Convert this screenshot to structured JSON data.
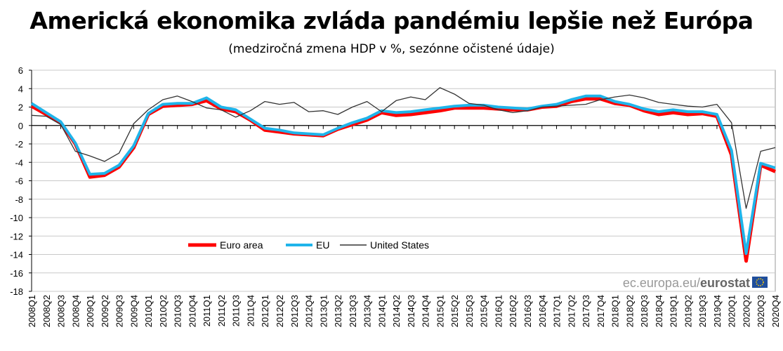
{
  "chart_data": {
    "type": "line",
    "title": "Americká ekonomika zvláda pandémiu lepšie než Európa",
    "subtitle": "(medziročná zmena HDP v %, sezónne očistené údaje)",
    "xlabel": "",
    "ylabel": "",
    "ylim": [
      -18,
      6
    ],
    "yticks": [
      "6",
      "4",
      "2",
      "0",
      "-2",
      "-4",
      "-6",
      "-8",
      "-10",
      "-12",
      "-14",
      "-16",
      "-18"
    ],
    "grid": true,
    "legend_position": "bottom-left",
    "categories": [
      "2008Q1",
      "2008Q2",
      "2008Q3",
      "2008Q4",
      "2009Q1",
      "2009Q2",
      "2009Q3",
      "2009Q4",
      "2010Q1",
      "2010Q2",
      "2010Q3",
      "2010Q4",
      "2011Q1",
      "2011Q2",
      "2011Q3",
      "2011Q4",
      "2012Q1",
      "2012Q2",
      "2012Q3",
      "2012Q4",
      "2013Q1",
      "2013Q2",
      "2013Q3",
      "2013Q4",
      "2014Q1",
      "2014Q2",
      "2014Q3",
      "2014Q4",
      "2015Q1",
      "2015Q2",
      "2015Q3",
      "2015Q4",
      "2016Q1",
      "2016Q2",
      "2016Q3",
      "2016Q4",
      "2017Q1",
      "2017Q2",
      "2017Q3",
      "2017Q4",
      "2018Q1",
      "2018Q2",
      "2018Q3",
      "2018Q4",
      "2019Q1",
      "2019Q2",
      "2019Q3",
      "2019Q4",
      "2020Q1",
      "2020Q2",
      "2020Q3",
      "2020Q4"
    ],
    "series": [
      {
        "name": "Euro area",
        "color": "#ff0000",
        "values": [
          2.1,
          1.2,
          0.3,
          -2.0,
          -5.6,
          -5.4,
          -4.5,
          -2.4,
          1.2,
          2.1,
          2.2,
          2.3,
          2.7,
          1.8,
          1.5,
          0.6,
          -0.5,
          -0.7,
          -0.9,
          -1.0,
          -1.1,
          -0.4,
          0.1,
          0.6,
          1.4,
          1.1,
          1.2,
          1.4,
          1.6,
          1.9,
          1.9,
          1.9,
          1.8,
          1.7,
          1.7,
          2.0,
          2.1,
          2.6,
          2.9,
          2.9,
          2.4,
          2.2,
          1.6,
          1.2,
          1.4,
          1.2,
          1.3,
          1.0,
          -3.2,
          -14.7,
          -4.3,
          -5.0
        ]
      },
      {
        "name": "EU",
        "color": "#1fb4ea",
        "values": [
          2.4,
          1.4,
          0.4,
          -1.9,
          -5.3,
          -5.2,
          -4.3,
          -2.2,
          1.3,
          2.3,
          2.4,
          2.4,
          3.0,
          2.0,
          1.7,
          0.7,
          -0.3,
          -0.5,
          -0.8,
          -0.9,
          -1.0,
          -0.3,
          0.3,
          0.8,
          1.6,
          1.4,
          1.5,
          1.7,
          1.9,
          2.1,
          2.2,
          2.2,
          2.0,
          1.9,
          1.8,
          2.1,
          2.3,
          2.8,
          3.2,
          3.2,
          2.6,
          2.3,
          1.8,
          1.5,
          1.7,
          1.5,
          1.5,
          1.2,
          -2.7,
          -13.9,
          -4.1,
          -4.6
        ]
      },
      {
        "name": "United States",
        "color": "#333333",
        "values": [
          1.1,
          1.0,
          0.1,
          -2.8,
          -3.3,
          -3.9,
          -3.0,
          0.2,
          1.7,
          2.8,
          3.2,
          2.6,
          1.9,
          1.7,
          0.9,
          1.6,
          2.6,
          2.3,
          2.5,
          1.5,
          1.6,
          1.2,
          2.0,
          2.6,
          1.5,
          2.7,
          3.1,
          2.8,
          4.1,
          3.4,
          2.4,
          2.2,
          1.7,
          1.4,
          1.6,
          2.0,
          2.1,
          2.2,
          2.3,
          2.8,
          3.1,
          3.3,
          3.0,
          2.5,
          2.3,
          2.1,
          2.0,
          2.3,
          0.3,
          -9.0,
          -2.8,
          -2.4
        ]
      }
    ],
    "watermark": {
      "site": "ec.europa.eu/",
      "brand": "eurostat"
    }
  }
}
